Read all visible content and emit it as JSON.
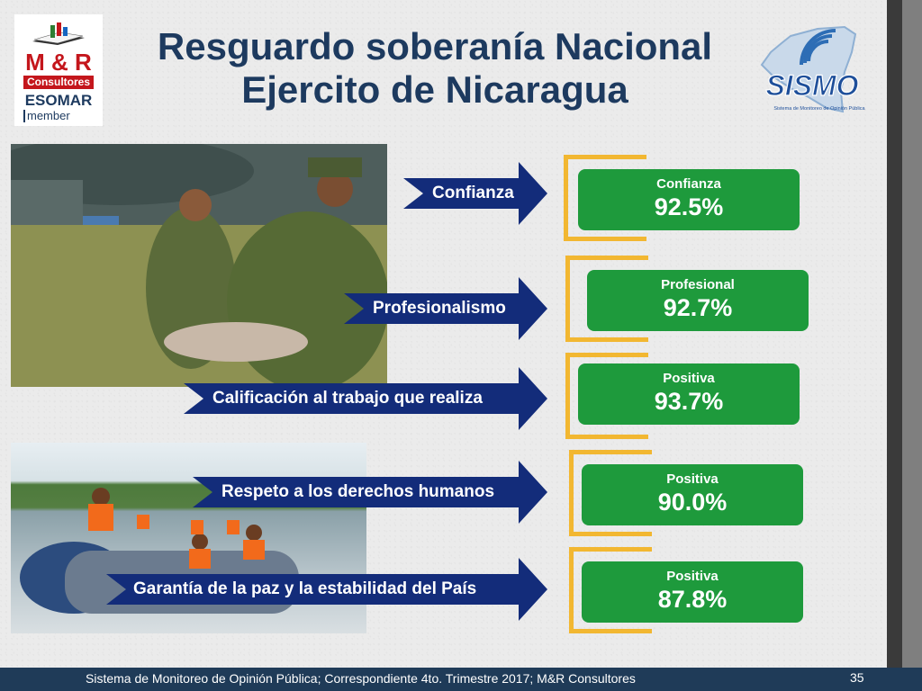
{
  "title": {
    "line1": "Resguardo soberanía Nacional",
    "line2": "Ejercito de Nicaragua"
  },
  "logo_left": {
    "brand": "M & R",
    "consultores": "Consultores",
    "esomar": "ESOMAR",
    "member": "member"
  },
  "logo_right": {
    "brand": "SISMO",
    "tagline": "Sistema de Monitoreo de Opinión Pública"
  },
  "items": [
    {
      "label": "Confianza",
      "box_label": "Confianza",
      "value": "92.5%"
    },
    {
      "label": "Profesionalismo",
      "box_label": "Profesional",
      "value": "92.7%"
    },
    {
      "label": "Calificación al trabajo que realiza",
      "box_label": "Positiva",
      "value": "93.7%"
    },
    {
      "label": "Respeto a los derechos humanos",
      "box_label": "Positiva",
      "value": "90.0%"
    },
    {
      "label": "Garantía de la paz y la estabilidad del País",
      "box_label": "Positiva",
      "value": "87.8%"
    }
  ],
  "footer": {
    "text": "Sistema de Monitoreo de Opinión Pública; Correspondiente 4to. Trimestre 2017; M&R Consultores",
    "page": "35"
  },
  "colors": {
    "title": "#1d3a5f",
    "arrow": "#132c7a",
    "box": "#1e9a3c",
    "bracket": "#f2b731",
    "footer": "#1f3b58"
  }
}
